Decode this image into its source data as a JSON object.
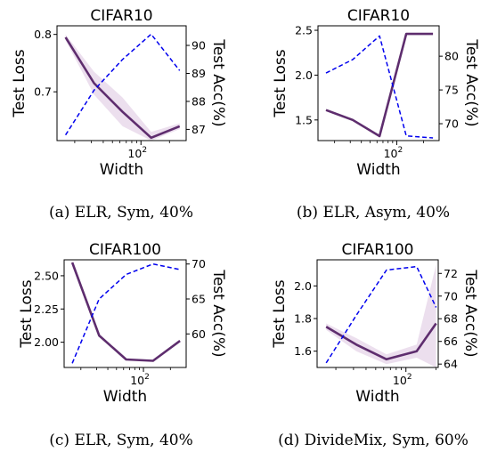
{
  "chart_data": [
    {
      "type": "line",
      "title": "CIFAR10",
      "xlabel": "Width",
      "ylabel": "Test Loss",
      "ylabel_right": "Test Acc(%)",
      "caption": "(a) ELR, Sym, 40%",
      "x_scale": "log",
      "x": [
        16,
        32,
        64,
        128,
        256
      ],
      "xlim": [
        13,
        300
      ],
      "xticks": [
        {
          "value": 100,
          "base": "10",
          "exp": "2"
        }
      ],
      "ylim_left": [
        0.615,
        0.815
      ],
      "yticks_left": [
        "0.7",
        "0.8"
      ],
      "ytick_values_left": [
        0.7,
        0.8
      ],
      "ylim_right": [
        86.6,
        90.7
      ],
      "yticks_right": [
        "87",
        "88",
        "89",
        "90"
      ],
      "ytick_values_right": [
        87,
        88,
        89,
        90
      ],
      "series": [
        {
          "axis": "left",
          "style": "solid",
          "color": "#5e2d6e",
          "values": [
            0.795,
            0.715,
            0.665,
            0.62,
            0.64
          ],
          "band_low": [
            0.79,
            0.695,
            0.64,
            0.615,
            0.635
          ],
          "band_high": [
            0.8,
            0.735,
            0.69,
            0.63,
            0.645
          ]
        },
        {
          "axis": "right",
          "style": "dashed",
          "color": "#0000ee",
          "values": [
            86.8,
            88.4,
            89.5,
            90.4,
            89.1
          ]
        }
      ]
    },
    {
      "type": "line",
      "title": "CIFAR10",
      "xlabel": "Width",
      "ylabel": "Test Loss",
      "ylabel_right": "Test Acc(%)",
      "caption": "(b) ELR, Asym, 40%",
      "x_scale": "log",
      "x": [
        16,
        32,
        64,
        128,
        256
      ],
      "xlim": [
        13,
        300
      ],
      "xticks": [
        {
          "value": 100,
          "base": "10",
          "exp": "2"
        }
      ],
      "ylim_left": [
        1.27,
        2.55
      ],
      "yticks_left": [
        "1.5",
        "2.0",
        "2.5"
      ],
      "ytick_values_left": [
        1.5,
        2.0,
        2.5
      ],
      "ylim_right": [
        67.5,
        84.5
      ],
      "yticks_right": [
        "70",
        "75",
        "80"
      ],
      "ytick_values_right": [
        70,
        75,
        80
      ],
      "series": [
        {
          "axis": "left",
          "style": "solid",
          "color": "#5e2d6e",
          "values": [
            1.61,
            1.5,
            1.32,
            2.46,
            2.46
          ]
        },
        {
          "axis": "right",
          "style": "dashed",
          "color": "#0000ee",
          "values": [
            77.5,
            79.5,
            83.0,
            68.2,
            67.9
          ]
        }
      ]
    },
    {
      "type": "line",
      "title": "CIFAR100",
      "xlabel": "Width",
      "ylabel": "Test Loss",
      "ylabel_right": "Test Acc(%)",
      "caption": "(c) ELR, Sym, 40%",
      "x_scale": "log",
      "x": [
        16,
        32,
        64,
        128,
        256
      ],
      "xlim": [
        13,
        300
      ],
      "xticks": [
        {
          "value": 100,
          "base": "10",
          "exp": "2"
        }
      ],
      "ylim_left": [
        1.81,
        2.62
      ],
      "yticks_left": [
        "2.00",
        "2.25",
        "2.50"
      ],
      "ytick_values_left": [
        2.0,
        2.25,
        2.5
      ],
      "ylim_right": [
        55.2,
        70.6
      ],
      "yticks_right": [
        "60",
        "65",
        "70"
      ],
      "ytick_values_right": [
        60,
        65,
        70
      ],
      "series": [
        {
          "axis": "left",
          "style": "solid",
          "color": "#5e2d6e",
          "values": [
            2.6,
            2.05,
            1.87,
            1.86,
            2.01
          ]
        },
        {
          "axis": "right",
          "style": "dashed",
          "color": "#0000ee",
          "values": [
            55.8,
            65.0,
            68.5,
            70.0,
            69.2
          ]
        }
      ]
    },
    {
      "type": "line",
      "title": "CIFAR100",
      "xlabel": "Width",
      "ylabel": "Test Loss",
      "ylabel_right": "Test Acc(%)",
      "caption": "(d) DivideMix, Sym, 60%",
      "x_scale": "log",
      "x": [
        16,
        32,
        64,
        128,
        200
      ],
      "xlim": [
        13,
        210
      ],
      "xticks": [
        {
          "value": 100,
          "base": "10",
          "exp": "2"
        }
      ],
      "ylim_left": [
        1.5,
        2.16
      ],
      "yticks_left": [
        "1.6",
        "1.8",
        "2.0"
      ],
      "ytick_values_left": [
        1.6,
        1.8,
        2.0
      ],
      "ylim_right": [
        63.7,
        73.2
      ],
      "yticks_right": [
        "64",
        "66",
        "68",
        "70",
        "72"
      ],
      "ytick_values_right": [
        64,
        66,
        68,
        70,
        72
      ],
      "series": [
        {
          "axis": "left",
          "style": "solid",
          "color": "#5e2d6e",
          "values": [
            1.75,
            1.64,
            1.55,
            1.6,
            1.77
          ],
          "band_low": [
            1.73,
            1.6,
            1.52,
            1.56,
            1.5
          ],
          "band_high": [
            1.77,
            1.68,
            1.58,
            1.64,
            2.13
          ]
        },
        {
          "axis": "right",
          "style": "dashed",
          "color": "#0000ee",
          "values": [
            64.1,
            68.3,
            72.3,
            72.6,
            69.0
          ]
        }
      ]
    }
  ]
}
